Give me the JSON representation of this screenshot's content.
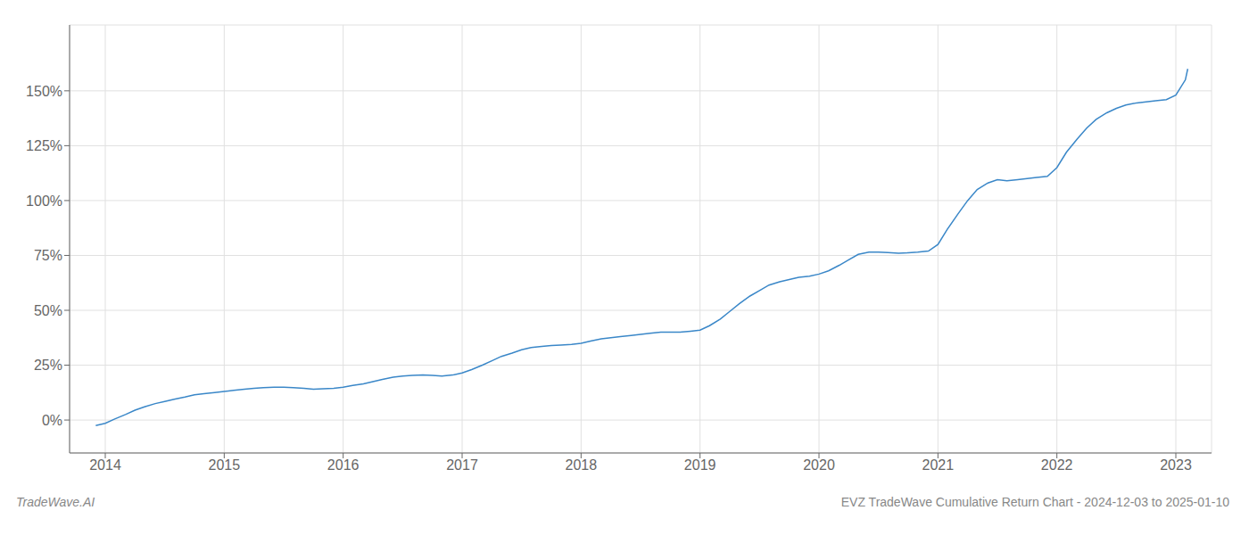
{
  "chart_data": {
    "type": "line",
    "title": "EVZ TradeWave Cumulative Return Chart - 2024-12-03 to 2025-01-10",
    "annotations": [
      "TradeWave.AI"
    ],
    "color": "#3a87c8",
    "grid": true,
    "x": [
      2013.92,
      2014.0,
      2014.08,
      2014.17,
      2014.25,
      2014.33,
      2014.42,
      2014.5,
      2014.58,
      2014.67,
      2014.75,
      2014.83,
      2014.92,
      2015.0,
      2015.08,
      2015.17,
      2015.25,
      2015.33,
      2015.42,
      2015.5,
      2015.58,
      2015.67,
      2015.75,
      2015.83,
      2015.92,
      2016.0,
      2016.08,
      2016.17,
      2016.25,
      2016.33,
      2016.42,
      2016.5,
      2016.58,
      2016.67,
      2016.75,
      2016.83,
      2016.92,
      2017.0,
      2017.08,
      2017.17,
      2017.25,
      2017.33,
      2017.42,
      2017.5,
      2017.58,
      2017.67,
      2017.75,
      2017.83,
      2017.92,
      2018.0,
      2018.08,
      2018.17,
      2018.25,
      2018.33,
      2018.42,
      2018.5,
      2018.58,
      2018.67,
      2018.75,
      2018.83,
      2018.92,
      2019.0,
      2019.08,
      2019.17,
      2019.25,
      2019.33,
      2019.42,
      2019.5,
      2019.58,
      2019.67,
      2019.75,
      2019.83,
      2019.92,
      2020.0,
      2020.08,
      2020.17,
      2020.25,
      2020.33,
      2020.42,
      2020.5,
      2020.58,
      2020.67,
      2020.75,
      2020.83,
      2020.92,
      2021.0,
      2021.08,
      2021.17,
      2021.25,
      2021.33,
      2021.42,
      2021.5,
      2021.58,
      2021.67,
      2021.75,
      2021.83,
      2021.92,
      2022.0,
      2022.08,
      2022.17,
      2022.25,
      2022.33,
      2022.42,
      2022.5,
      2022.58,
      2022.67,
      2022.75,
      2022.83,
      2022.92,
      2023.0,
      2023.08,
      2023.1
    ],
    "values": [
      -2.5,
      -1.5,
      0.5,
      2.5,
      4.5,
      6.0,
      7.5,
      8.5,
      9.5,
      10.5,
      11.5,
      12.0,
      12.5,
      13.0,
      13.5,
      14.0,
      14.5,
      14.8,
      15.0,
      15.0,
      14.8,
      14.5,
      14.0,
      14.2,
      14.5,
      15.0,
      15.8,
      16.5,
      17.5,
      18.5,
      19.5,
      20.0,
      20.3,
      20.5,
      20.3,
      20.0,
      20.5,
      21.5,
      23.0,
      25.0,
      27.0,
      29.0,
      30.5,
      32.0,
      33.0,
      33.5,
      34.0,
      34.2,
      34.5,
      35.0,
      36.0,
      37.0,
      37.5,
      38.0,
      38.5,
      39.0,
      39.5,
      40.0,
      40.0,
      40.0,
      40.5,
      41.0,
      43.0,
      46.0,
      49.5,
      53.0,
      56.5,
      59.0,
      61.5,
      63.0,
      64.0,
      65.0,
      65.5,
      66.5,
      68.0,
      70.5,
      73.0,
      75.5,
      76.5,
      76.5,
      76.3,
      76.0,
      76.2,
      76.5,
      77.0,
      80.0,
      87.0,
      94.0,
      100.0,
      105.0,
      108.0,
      109.5,
      109.0,
      109.5,
      110.0,
      110.5,
      111.0,
      115.0,
      122.0,
      128.0,
      133.0,
      137.0,
      140.0,
      142.0,
      143.5,
      144.5,
      145.0,
      145.5,
      146.0,
      148.0,
      155.0,
      160.0
    ],
    "xlim": [
      2013.7,
      2023.3
    ],
    "xticks": [
      2014,
      2015,
      2016,
      2017,
      2018,
      2019,
      2020,
      2021,
      2022,
      2023
    ],
    "ylim": [
      -15,
      180
    ],
    "yticks": [
      {
        "value": 0,
        "label": "0%"
      },
      {
        "value": 25,
        "label": "25%"
      },
      {
        "value": 50,
        "label": "50%"
      },
      {
        "value": 75,
        "label": "75%"
      },
      {
        "value": 100,
        "label": "100%"
      },
      {
        "value": 125,
        "label": "125%"
      },
      {
        "value": 150,
        "label": "150%"
      }
    ]
  }
}
